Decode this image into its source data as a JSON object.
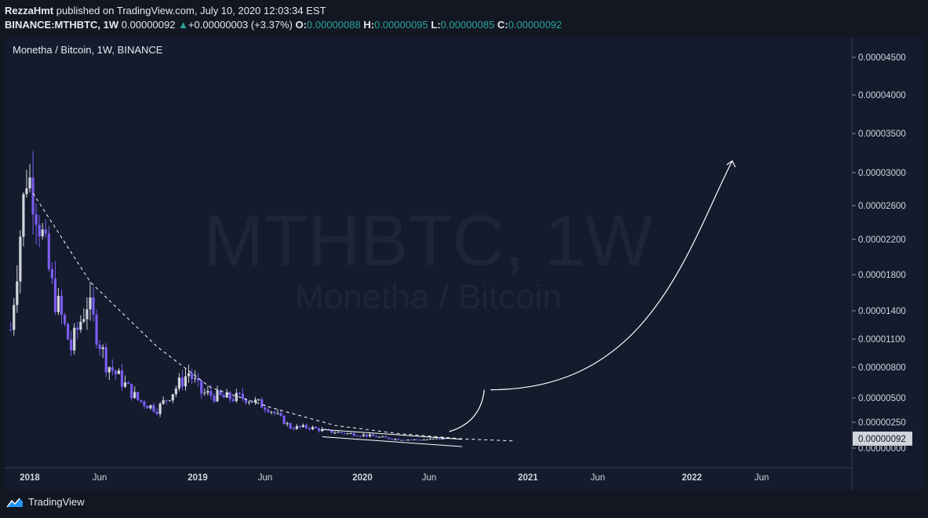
{
  "header": {
    "author": "RezzaHmt",
    "published_text": "published on TradingView.com, July 10, 2020 12:03:34 EST",
    "symbol": "BINANCE:MTHBTC, 1W",
    "last": "0.00000092",
    "change_arrow": "▲",
    "change": "+0.00000003 (+3.37%)",
    "o_label": "O:",
    "o_value": "0.00000088",
    "h_label": "H:",
    "h_value": "0.00000095",
    "l_label": "L:",
    "l_value": "0.00000085",
    "c_label": "C:",
    "c_value": "0.00000092"
  },
  "legend": "Monetha / Bitcoin, 1W, BINANCE",
  "watermark": {
    "line1": "MTHBTC, 1W",
    "line2": "Monetha / Bitcoin"
  },
  "footer": {
    "brand": "TradingView"
  },
  "colors": {
    "background": "#131722",
    "pane": "#131b2d",
    "up_candle": "#d1d4dc",
    "down_candle": "#7b5cf0",
    "accent": "#26a69a",
    "drawing": "#ffffff"
  },
  "chart_data": {
    "type": "candlestick",
    "price_label": "0.00000092",
    "y_axis_ticks": [
      "0.00004500",
      "0.00004000",
      "0.00003500",
      "0.00003000",
      "0.00002600",
      "0.00002200",
      "0.00001800",
      "0.00001400",
      "0.00001100",
      "0.00000800",
      "0.00000500",
      "0.00000250",
      "0.00000000"
    ],
    "x_axis_ticks": [
      "2018",
      "Jun",
      "2019",
      "Jun",
      "2020",
      "Jun",
      "2021",
      "Jun",
      "2022",
      "Jun"
    ],
    "y_scale": "compressed (non-linear)",
    "grid": false,
    "annotations": [
      "dashed descending trendline",
      "descending channel",
      "projected breakout curve with arrow"
    ],
    "price_path": [
      {
        "x": "2017-11-20",
        "y": 1.2e-05
      },
      {
        "x": "2017-12-25",
        "y": 3e-05
      },
      {
        "x": "2018-01-08",
        "y": 2.8e-05
      },
      {
        "x": "2018-02-19",
        "y": 1.65e-05
      },
      {
        "x": "2018-04-02",
        "y": 1e-05
      },
      {
        "x": "2018-05-07",
        "y": 1.5e-05
      },
      {
        "x": "2018-06-18",
        "y": 8.5e-06
      },
      {
        "x": "2018-08-27",
        "y": 4.8e-06
      },
      {
        "x": "2018-10-08",
        "y": 3.8e-06
      },
      {
        "x": "2018-11-19",
        "y": 6e-06
      },
      {
        "x": "2018-12-17",
        "y": 7.5e-06
      },
      {
        "x": "2019-01-14",
        "y": 5.5e-06
      },
      {
        "x": "2019-03-04",
        "y": 5e-06
      },
      {
        "x": "2019-04-22",
        "y": 5e-06
      },
      {
        "x": "2019-06-10",
        "y": 4e-06
      },
      {
        "x": "2019-07-29",
        "y": 2e-06
      },
      {
        "x": "2019-09-09",
        "y": 2e-06
      },
      {
        "x": "2019-10-21",
        "y": 1.6e-06
      },
      {
        "x": "2019-12-30",
        "y": 1.3e-06
      },
      {
        "x": "2020-03-09",
        "y": 9e-07
      },
      {
        "x": "2020-05-04",
        "y": 8e-07
      },
      {
        "x": "2020-07-06",
        "y": 9.2e-07
      }
    ]
  }
}
